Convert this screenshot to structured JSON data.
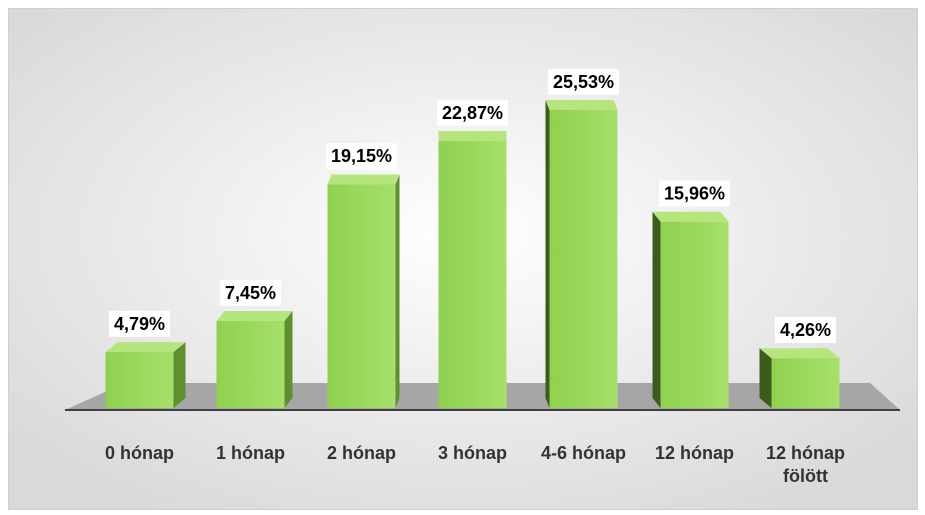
{
  "chart_data": {
    "type": "bar3d",
    "categories": [
      "0 hónap",
      "1 hónap",
      "2 hónap",
      "3 hónap",
      "4-6 hónap",
      "12 hónap",
      "12 hónap fölött"
    ],
    "values": [
      4.79,
      7.45,
      19.15,
      22.87,
      25.53,
      15.96,
      4.26
    ],
    "value_labels": [
      "4,79%",
      "7,45%",
      "19,15%",
      "22,87%",
      "25,53%",
      "15,96%",
      "4,26%"
    ],
    "color": "#92d050"
  }
}
